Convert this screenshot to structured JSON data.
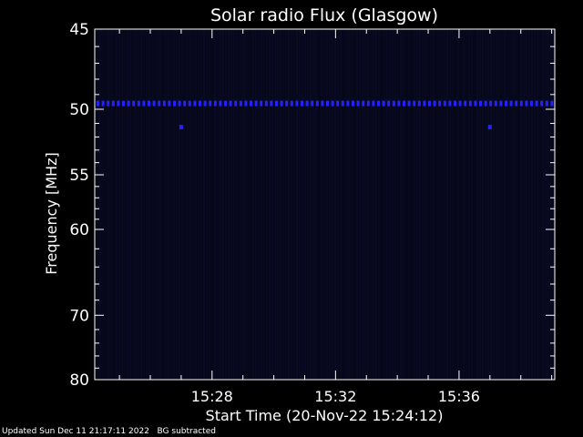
{
  "chart_data": {
    "type": "heatmap",
    "title": "Solar radio Flux (Glasgow)",
    "xlabel": "Start Time (20-Nov-22 15:24:12)",
    "ylabel": "Frequency [MHz]",
    "x_tick_labels": [
      "15:28",
      "15:32",
      "15:36"
    ],
    "x_tick_minutes": [
      28,
      32,
      36
    ],
    "x_range_minutes": [
      24.2,
      39.1
    ],
    "y_ticks": [
      45,
      50,
      55,
      60,
      70,
      80
    ],
    "y_scale": "reciprocal",
    "y_range": [
      80,
      45
    ],
    "colors": {
      "background": "#000000",
      "plot_field": "#07071a",
      "emission": "#2222ff",
      "axes": "#ffffff"
    },
    "features": [
      {
        "name": "interference line",
        "frequency_mhz": 49.6,
        "minute_start": 24.2,
        "minute_end": 39.1
      },
      {
        "name": "spot",
        "frequency_mhz": 51.3,
        "minute": 27.0
      },
      {
        "name": "spot",
        "frequency_mhz": 51.3,
        "minute": 37.0
      }
    ]
  },
  "footer": {
    "updated": "Updated Sun Dec 11 21:17:11 2022",
    "note": "BG subtracted"
  }
}
